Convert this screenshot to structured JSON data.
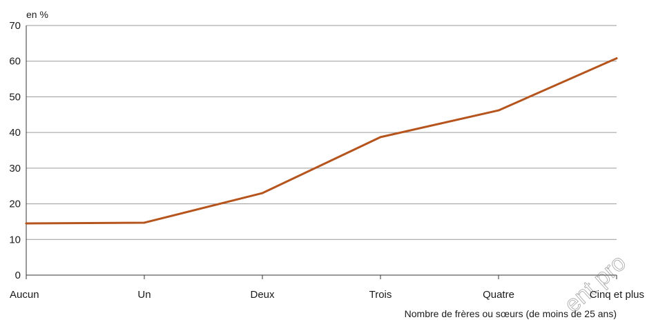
{
  "chart_data": {
    "type": "line",
    "title": "",
    "ylabel": "en %",
    "xlabel": "Nombre de frères ou sœurs (de moins de 25 ans)",
    "categories": [
      "Aucun",
      "Un",
      "Deux",
      "Trois",
      "Quatre",
      "Cinq et plus"
    ],
    "series": [
      {
        "values": [
          14.5,
          14.7,
          23,
          38.7,
          46.2,
          60.8
        ],
        "color": "#b5541c"
      }
    ],
    "ylim": [
      0,
      70
    ],
    "yticks": [
      0,
      10,
      20,
      30,
      40,
      50,
      60,
      70
    ],
    "grid": true,
    "legend": "none"
  },
  "watermark": "ent pro"
}
